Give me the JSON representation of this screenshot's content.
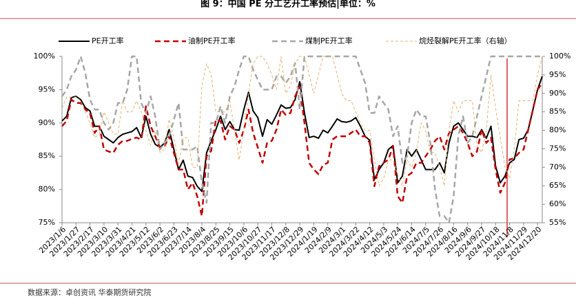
{
  "chart_data": {
    "type": "line",
    "title": "图 9：中国 PE 分工艺开工率预估|单位：%",
    "source": "数据来源：卓创资讯 华泰期货研究院",
    "categories": [
      "2023/1/6",
      null,
      null,
      "2023/1/27",
      null,
      null,
      "2023/2/17",
      null,
      null,
      "2023/3/10",
      null,
      null,
      "2023/3/31",
      null,
      null,
      "2023/4/21",
      null,
      null,
      "2023/5/12",
      null,
      null,
      "2023/6/2",
      null,
      null,
      "2023/6/23",
      null,
      null,
      "2023/7/14",
      null,
      null,
      "2023/8/4",
      null,
      null,
      "2023/8/25",
      null,
      null,
      "2023/9/15",
      null,
      null,
      "2023/10/6",
      null,
      null,
      "2023/10/27",
      null,
      null,
      "2023/11/17",
      null,
      null,
      "2023/12/8",
      null,
      null,
      "2023/12/29",
      null,
      null,
      "2024/1/19",
      null,
      null,
      "2024/2/9",
      null,
      null,
      "2024/3/1",
      null,
      null,
      "2024/3/22",
      null,
      null,
      "2024/4/12",
      null,
      null,
      "2024/5/3",
      null,
      null,
      "2024/5/24",
      null,
      null,
      "2024/6/14",
      null,
      null,
      "2024/7/5",
      null,
      null,
      "2024/7/26",
      null,
      null,
      "2024/8/16",
      null,
      null,
      "2024/9/6",
      null,
      null,
      "2024/9/27",
      null,
      null,
      "2024/10/18",
      null,
      null,
      "2024/11/8",
      null,
      null,
      "2024/11/29",
      null,
      null,
      "2024/12/20",
      null
    ],
    "series": [
      {
        "name": "PE开工率",
        "color": "#000000",
        "values": [
          90.3,
          91,
          93.8,
          94,
          93.5,
          92.3,
          91.8,
          89.5,
          89.5,
          88,
          87.5,
          87,
          87.8,
          88.3,
          88.5,
          88.7,
          89.3,
          87.8,
          91,
          88.3,
          86.8,
          86.3,
          87,
          89,
          86,
          83,
          84.4,
          82,
          81.8,
          80.5,
          79.7,
          85.5,
          87.3,
          89,
          91,
          89,
          90.2,
          89,
          88.9,
          92,
          94.6,
          91.8,
          90.8,
          88,
          90.5,
          89.8,
          91.2,
          92.7,
          92.2,
          92.3,
          93.5,
          96.2,
          91.5,
          87.8,
          88,
          87.7,
          88.9,
          88.5,
          89.5,
          90.6,
          90.2,
          90.1,
          90.3,
          90.8,
          89.5,
          88,
          87.4,
          81.5,
          83,
          84,
          86,
          86.6,
          81,
          82,
          86,
          85,
          86,
          84.5,
          83,
          83,
          83,
          84,
          82.5,
          87,
          89.5,
          90,
          89,
          88,
          88,
          87.8,
          89,
          87.7,
          89.5,
          83.5,
          81,
          82,
          84,
          84.5,
          87.5,
          87.7,
          89,
          92,
          95,
          97
        ]
      },
      {
        "name": "油制PE开工率",
        "color": "#c00000",
        "values": [
          89.5,
          90.3,
          93.5,
          93,
          93,
          92,
          91.5,
          88.5,
          89.5,
          86,
          85.7,
          85.5,
          86.7,
          87.3,
          87.3,
          87.6,
          87.8,
          87.5,
          92.5,
          89.5,
          88,
          86.3,
          86.5,
          88,
          85.5,
          83,
          83,
          80,
          81,
          79,
          76,
          85,
          85.8,
          90.5,
          90.3,
          87.5,
          89.5,
          89,
          87,
          88.9,
          92,
          88.5,
          86.3,
          84,
          87,
          87.3,
          89,
          92,
          91.2,
          91.5,
          94,
          95.5,
          90,
          84,
          83,
          82.3,
          83.7,
          84,
          87.5,
          88,
          88,
          88,
          88.5,
          89,
          88,
          88,
          87,
          80.5,
          83.5,
          84,
          84.5,
          86.5,
          79,
          78,
          82,
          82.5,
          84,
          84,
          85,
          86,
          87.3,
          88,
          86,
          88.5,
          89,
          89.5,
          88.5,
          87,
          85,
          85.7,
          89,
          87,
          87.8,
          83,
          79.5,
          81,
          84.5,
          84.7,
          85.5,
          86,
          89,
          92,
          95,
          96
        ]
      },
      {
        "name": "煤制PE开工率",
        "color": "#a6a6a6",
        "values": [
          94,
          95,
          97,
          98,
          100,
          97.5,
          93.5,
          92,
          92,
          90,
          89,
          90,
          93,
          93,
          95,
          100,
          100,
          93,
          91.5,
          94,
          91,
          86,
          87,
          88,
          90.5,
          93,
          86,
          86,
          86,
          86.5,
          81,
          78,
          90,
          90,
          92.5,
          90,
          94,
          95.5,
          98,
          100,
          100,
          98,
          96.5,
          95,
          95,
          95,
          97,
          97,
          96,
          97,
          99,
          92,
          100,
          100,
          100,
          100,
          100,
          100,
          100,
          100,
          100,
          100,
          100,
          100,
          98,
          96,
          91.5,
          91.5,
          94,
          93,
          92,
          88,
          89.5,
          84,
          85,
          90,
          92,
          91,
          91,
          87,
          80,
          76,
          76,
          75,
          79,
          88,
          91,
          87,
          88,
          91,
          94,
          97,
          100,
          100,
          100,
          100,
          100,
          100,
          100,
          100,
          100,
          100,
          100,
          100
        ]
      },
      {
        "name": "烷烃裂解PE开工率（右轴）",
        "color": "#e0b070",
        "axis": "y2",
        "values": [
          86,
          89,
          89,
          89,
          88,
          85,
          82,
          78,
          79,
          85,
          82,
          79,
          79,
          88,
          85,
          85,
          88,
          85,
          80,
          76,
          80,
          74,
          75,
          83,
          78,
          71,
          78,
          78,
          70,
          70,
          92,
          98,
          95,
          85,
          85,
          85,
          88,
          80,
          72,
          80,
          90,
          98,
          100,
          100,
          98,
          95,
          91,
          100,
          90,
          92,
          98,
          100,
          100,
          95,
          90,
          95,
          100,
          100,
          100,
          95,
          90,
          88,
          88,
          85,
          82,
          80,
          80,
          72,
          65,
          67,
          72,
          72,
          68,
          65,
          72,
          70,
          74,
          82,
          80,
          74,
          74,
          70,
          65,
          80,
          88,
          85,
          88,
          88,
          88,
          76,
          74,
          80,
          95,
          86,
          78,
          70,
          67,
          75,
          88,
          88,
          88,
          88,
          95,
          100
        ]
      }
    ],
    "ylim": [
      75,
      100
    ],
    "yticks": [
      {
        "value": 75,
        "label": "75%"
      },
      {
        "value": 80,
        "label": "80%"
      },
      {
        "value": 85,
        "label": "85%"
      },
      {
        "value": 90,
        "label": "90%"
      },
      {
        "value": 95,
        "label": "95%"
      },
      {
        "value": 100,
        "label": "100%"
      }
    ],
    "y2lim": [
      55,
      100
    ],
    "y2ticks": [
      {
        "value": 55,
        "label": "55%"
      },
      {
        "value": 60,
        "label": "60%"
      },
      {
        "value": 65,
        "label": "65%"
      },
      {
        "value": 70,
        "label": "70%"
      },
      {
        "value": 75,
        "label": "75%"
      },
      {
        "value": 80,
        "label": "80%"
      },
      {
        "value": 85,
        "label": "85%"
      },
      {
        "value": 90,
        "label": "90%"
      },
      {
        "value": 95,
        "label": "95%"
      },
      {
        "value": 100,
        "label": "100%"
      }
    ]
  }
}
